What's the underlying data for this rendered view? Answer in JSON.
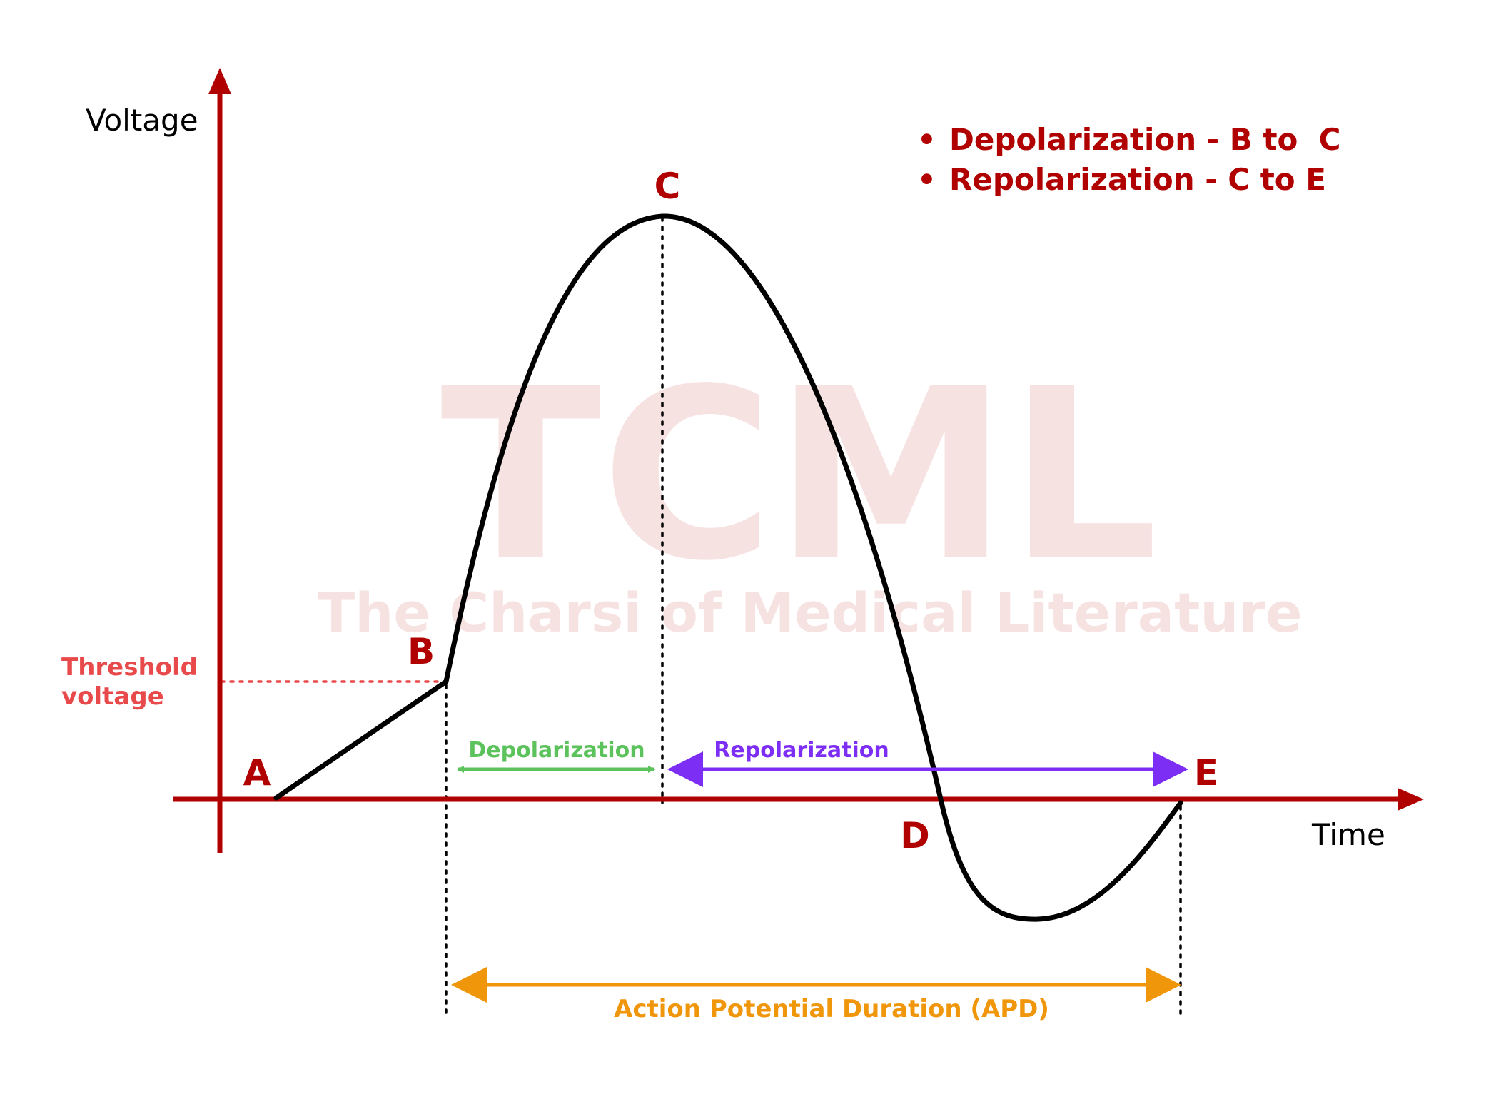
{
  "diagram": {
    "watermark": {
      "main": "TCML",
      "sub": "The Charsi of Medical Literature"
    },
    "axes": {
      "y_label": "Voltage",
      "x_label": "Time"
    },
    "threshold": {
      "line1": "Threshold",
      "line2": "voltage"
    },
    "points": {
      "a": "A",
      "b": "B",
      "c": "C",
      "d": "D",
      "e": "E"
    },
    "phases": {
      "depolarization": "Depolarization",
      "repolarization": "Repolarization",
      "apd": "Action Potential Duration (APD)"
    },
    "legend": {
      "bullet": "•",
      "items": [
        "Depolarization - B to  C",
        "Repolarization - C to E"
      ]
    },
    "colors": {
      "axis": "#b00000",
      "curve": "#000000",
      "label": "#b00000",
      "threshold": "#e8494a",
      "depolarization": "#5cc25c",
      "repolarization": "#7d2ef5",
      "apd": "#f0960a",
      "watermark": "#f7e2e2"
    }
  }
}
